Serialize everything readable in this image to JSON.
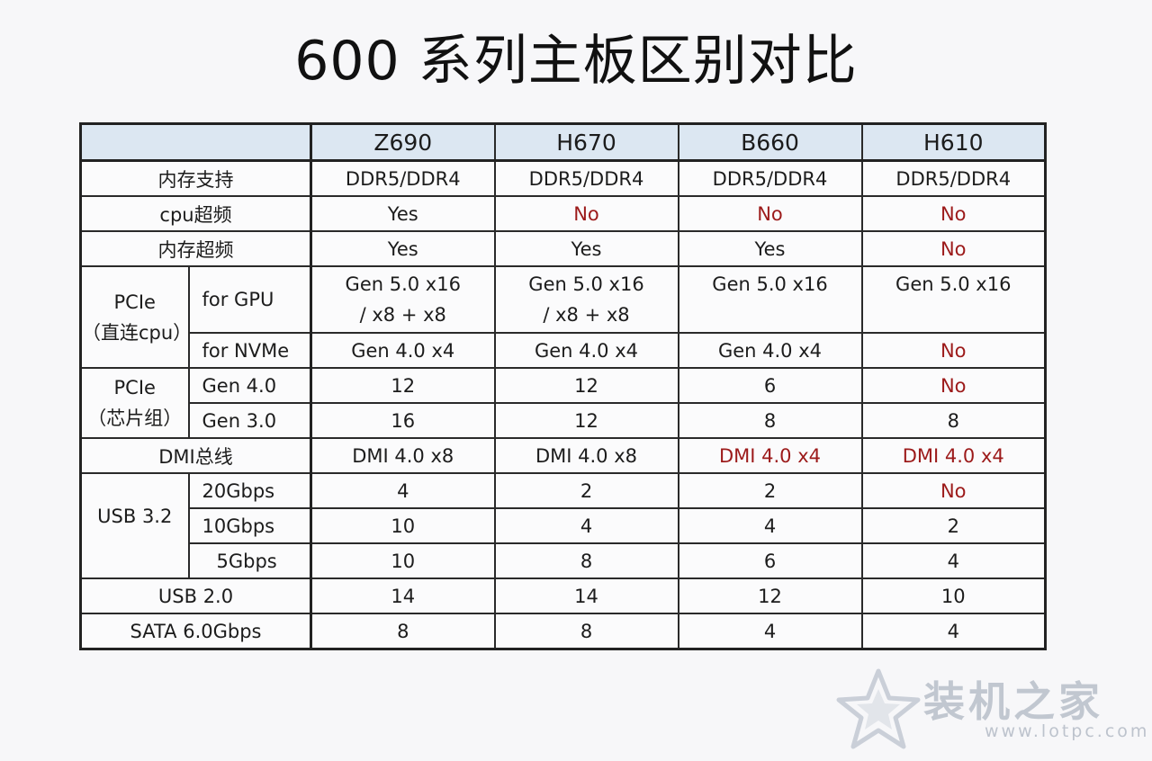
{
  "title": "600 系列主板区别对比",
  "header": [
    "",
    "Z690",
    "H670",
    "B660",
    "H610"
  ],
  "rows": {
    "memory_support": {
      "label": "内存支持",
      "values": [
        "DDR5/DDR4",
        "DDR5/DDR4",
        "DDR5/DDR4",
        "DDR5/DDR4"
      ]
    },
    "cpu_oc": {
      "label": "cpu超频",
      "values": [
        "Yes",
        "No",
        "No",
        "No"
      ]
    },
    "mem_oc": {
      "label": "内存超频",
      "values": [
        "Yes",
        "Yes",
        "Yes",
        "No"
      ]
    },
    "pcie_cpu": {
      "label_line1": "PCIe",
      "label_line2": "（直连cpu）",
      "gpu": {
        "label": "for GPU",
        "values": [
          [
            "Gen 5.0 x16",
            "/ x8 + x8"
          ],
          [
            "Gen 5.0 x16",
            "/ x8 + x8"
          ],
          [
            "Gen 5.0 x16",
            ""
          ],
          [
            "Gen 5.0 x16",
            ""
          ]
        ]
      },
      "nvme": {
        "label": "for NVMe",
        "values": [
          "Gen 4.0 x4",
          "Gen 4.0 x4",
          "Gen 4.0 x4",
          "No"
        ]
      }
    },
    "pcie_chipset": {
      "label_line1": "PCIe",
      "label_line2": "（芯片组）",
      "gen4": {
        "label": "Gen 4.0",
        "values": [
          "12",
          "12",
          "6",
          "No"
        ]
      },
      "gen3": {
        "label": "Gen 3.0",
        "values": [
          "16",
          "12",
          "8",
          "8"
        ]
      }
    },
    "dmi": {
      "label": "DMI总线",
      "values": [
        "DMI 4.0 x8",
        "DMI 4.0 x8",
        "DMI 4.0 x4",
        "DMI 4.0 x4"
      ]
    },
    "usb32": {
      "label": "USB 3.2",
      "g20": {
        "label": "20Gbps",
        "values": [
          "4",
          "2",
          "2",
          "No"
        ]
      },
      "g10": {
        "label": "10Gbps",
        "values": [
          "10",
          "4",
          "4",
          "2"
        ]
      },
      "g5": {
        "label": "5Gbps",
        "values": [
          "10",
          "8",
          "6",
          "4"
        ]
      }
    },
    "usb20": {
      "label": "USB 2.0",
      "values": [
        "14",
        "14",
        "12",
        "10"
      ]
    },
    "sata": {
      "label": "SATA 6.0Gbps",
      "values": [
        "8",
        "8",
        "4",
        "4"
      ]
    }
  },
  "colors": {
    "negative": "#9c1a1a",
    "header_bg": "#dce7f2"
  },
  "watermark": {
    "name": "装机之家",
    "url": "www.lotpc.com",
    "icon": "star-icon"
  }
}
